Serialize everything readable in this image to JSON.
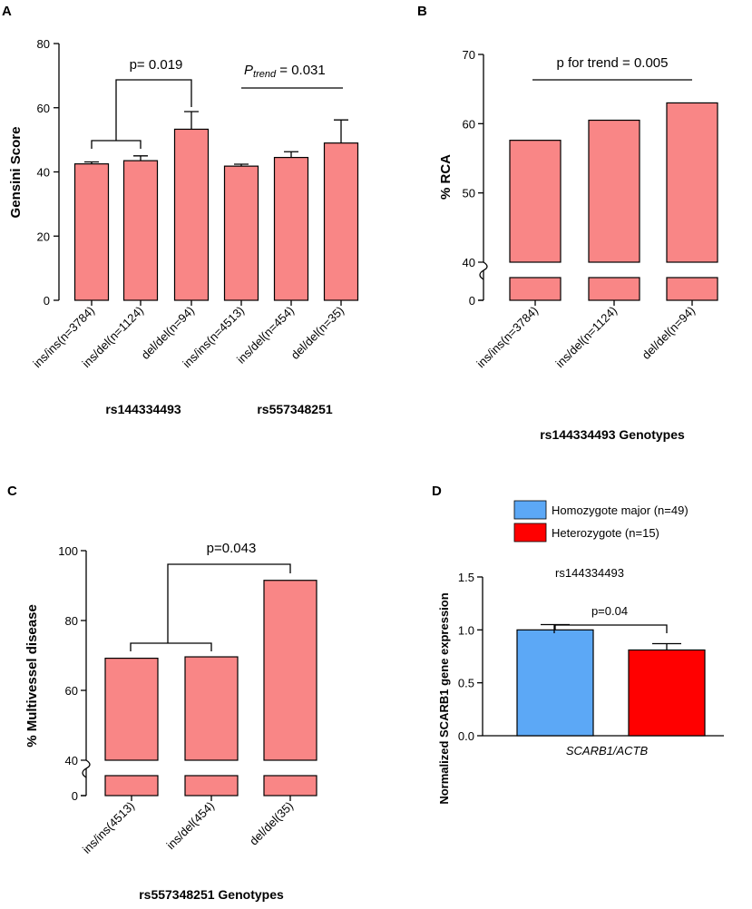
{
  "chart_data": [
    {
      "panel": "A",
      "type": "bar",
      "ylabel": "Gensini Score",
      "ylim": [
        0,
        80
      ],
      "yticks": [
        0,
        20,
        40,
        60,
        80
      ],
      "categories": [
        "ins/ins(n=3784)",
        "ins/del(n=1124)",
        "del/del(n=94)",
        "ins/ins(n=4513)",
        "ins/del(n=454)",
        "del/del(n=35)"
      ],
      "values": [
        42.5,
        43.5,
        53.3,
        41.8,
        44.5,
        49.0
      ],
      "errors": [
        0.6,
        1.5,
        5.5,
        0.6,
        1.8,
        7.2
      ],
      "groups": [
        "rs144334493",
        "rs557348251"
      ],
      "annotations": {
        "p1": "p= 0.019",
        "p2_prefix": "P",
        "p2_sub": "trend",
        "p2_rest": " = 0.031"
      },
      "bar_color": "#f98686"
    },
    {
      "panel": "B",
      "type": "bar",
      "ylabel": "% RCA",
      "xlabel": "rs144334493 Genotypes",
      "ylim": [
        0,
        70
      ],
      "axis_break": [
        0,
        40
      ],
      "yticks": [
        0,
        40,
        50,
        60,
        70
      ],
      "categories": [
        "ins/ins(n=3784)",
        "ins/del(n=1124)",
        "del/del(n=94)"
      ],
      "values": [
        57.6,
        60.5,
        63.0
      ],
      "annotations": {
        "p": "p for trend = 0.005"
      },
      "bar_color": "#f98686"
    },
    {
      "panel": "C",
      "type": "bar",
      "ylabel": "% Multivessel disease",
      "xlabel": "rs557348251 Genotypes",
      "ylim": [
        0,
        100
      ],
      "axis_break": [
        0,
        40
      ],
      "yticks": [
        0,
        40,
        60,
        80,
        100
      ],
      "categories": [
        "ins/ins(4513)",
        "ins/del(454)",
        "del/del(35)"
      ],
      "values": [
        69.2,
        69.6,
        91.5
      ],
      "annotations": {
        "p": "p=0.043"
      },
      "bar_color": "#f98686"
    },
    {
      "panel": "D",
      "type": "bar",
      "title": "rs144334493",
      "ylabel": "Normalized SCARB1 gene expression",
      "xlabel": "SCARB1/ACTB",
      "ylim": [
        0,
        1.5
      ],
      "yticks": [
        0.0,
        0.5,
        1.0,
        1.5
      ],
      "ytick_labels": [
        "0.0",
        "0.5",
        "1.0",
        "1.5"
      ],
      "series": [
        {
          "name": "Homozygote major (n=49)",
          "value": 1.0,
          "error": 0.05,
          "color": "#5ca8f6"
        },
        {
          "name": "Heterozygote (n=15)",
          "value": 0.81,
          "error": 0.06,
          "color": "#ff0000"
        }
      ],
      "annotations": {
        "p": "p=0.04"
      }
    }
  ]
}
